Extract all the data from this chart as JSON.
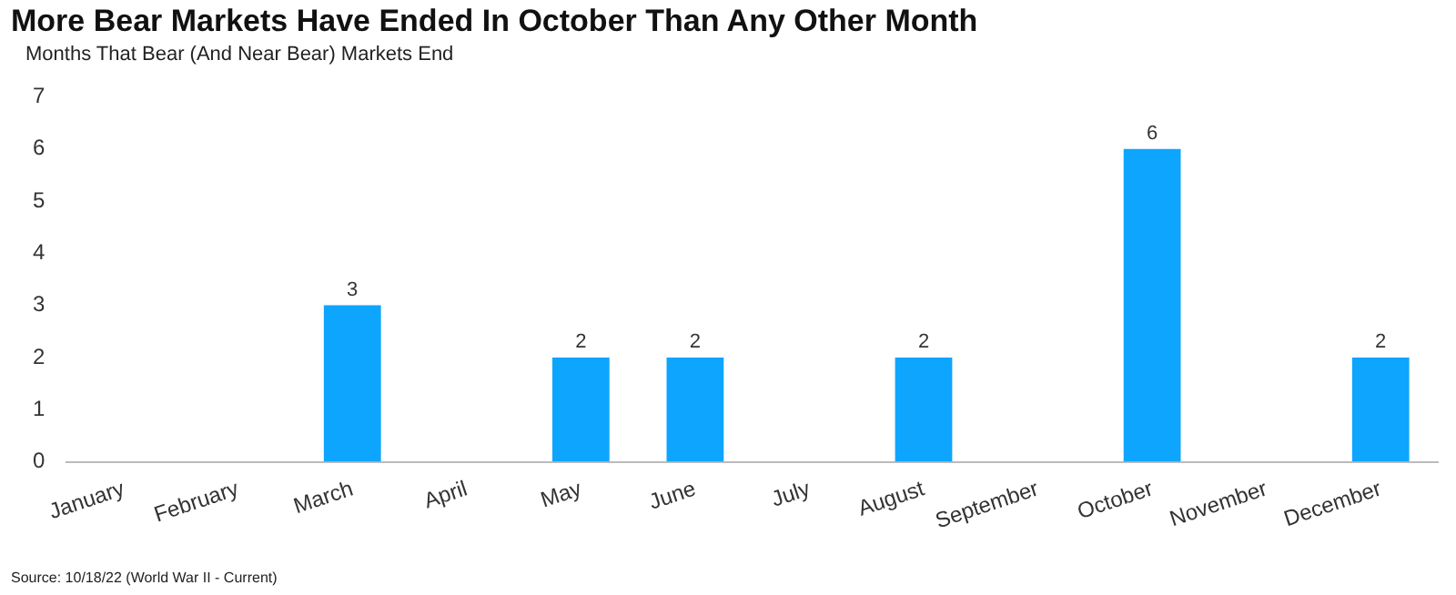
{
  "chart_data": {
    "type": "bar",
    "title": "More Bear Markets Have Ended In October Than Any Other Month",
    "subtitle": "Months That Bear (And Near Bear) Markets End",
    "categories": [
      "January",
      "February",
      "March",
      "April",
      "May",
      "June",
      "July",
      "August",
      "September",
      "October",
      "November",
      "December"
    ],
    "values": [
      0,
      0,
      3,
      0,
      2,
      2,
      0,
      2,
      0,
      6,
      0,
      2
    ],
    "value_labels": [
      null,
      null,
      "3",
      null,
      "2",
      "2",
      null,
      "2",
      null,
      "6",
      null,
      "2"
    ],
    "color": "#0ea5ff",
    "ylim": [
      0,
      7
    ],
    "yticks": [
      0,
      1,
      2,
      3,
      4,
      5,
      6,
      7
    ],
    "grid": false,
    "legend": false,
    "annotations": [
      "Source: 10/18/22 (World War II - Current)"
    ]
  }
}
